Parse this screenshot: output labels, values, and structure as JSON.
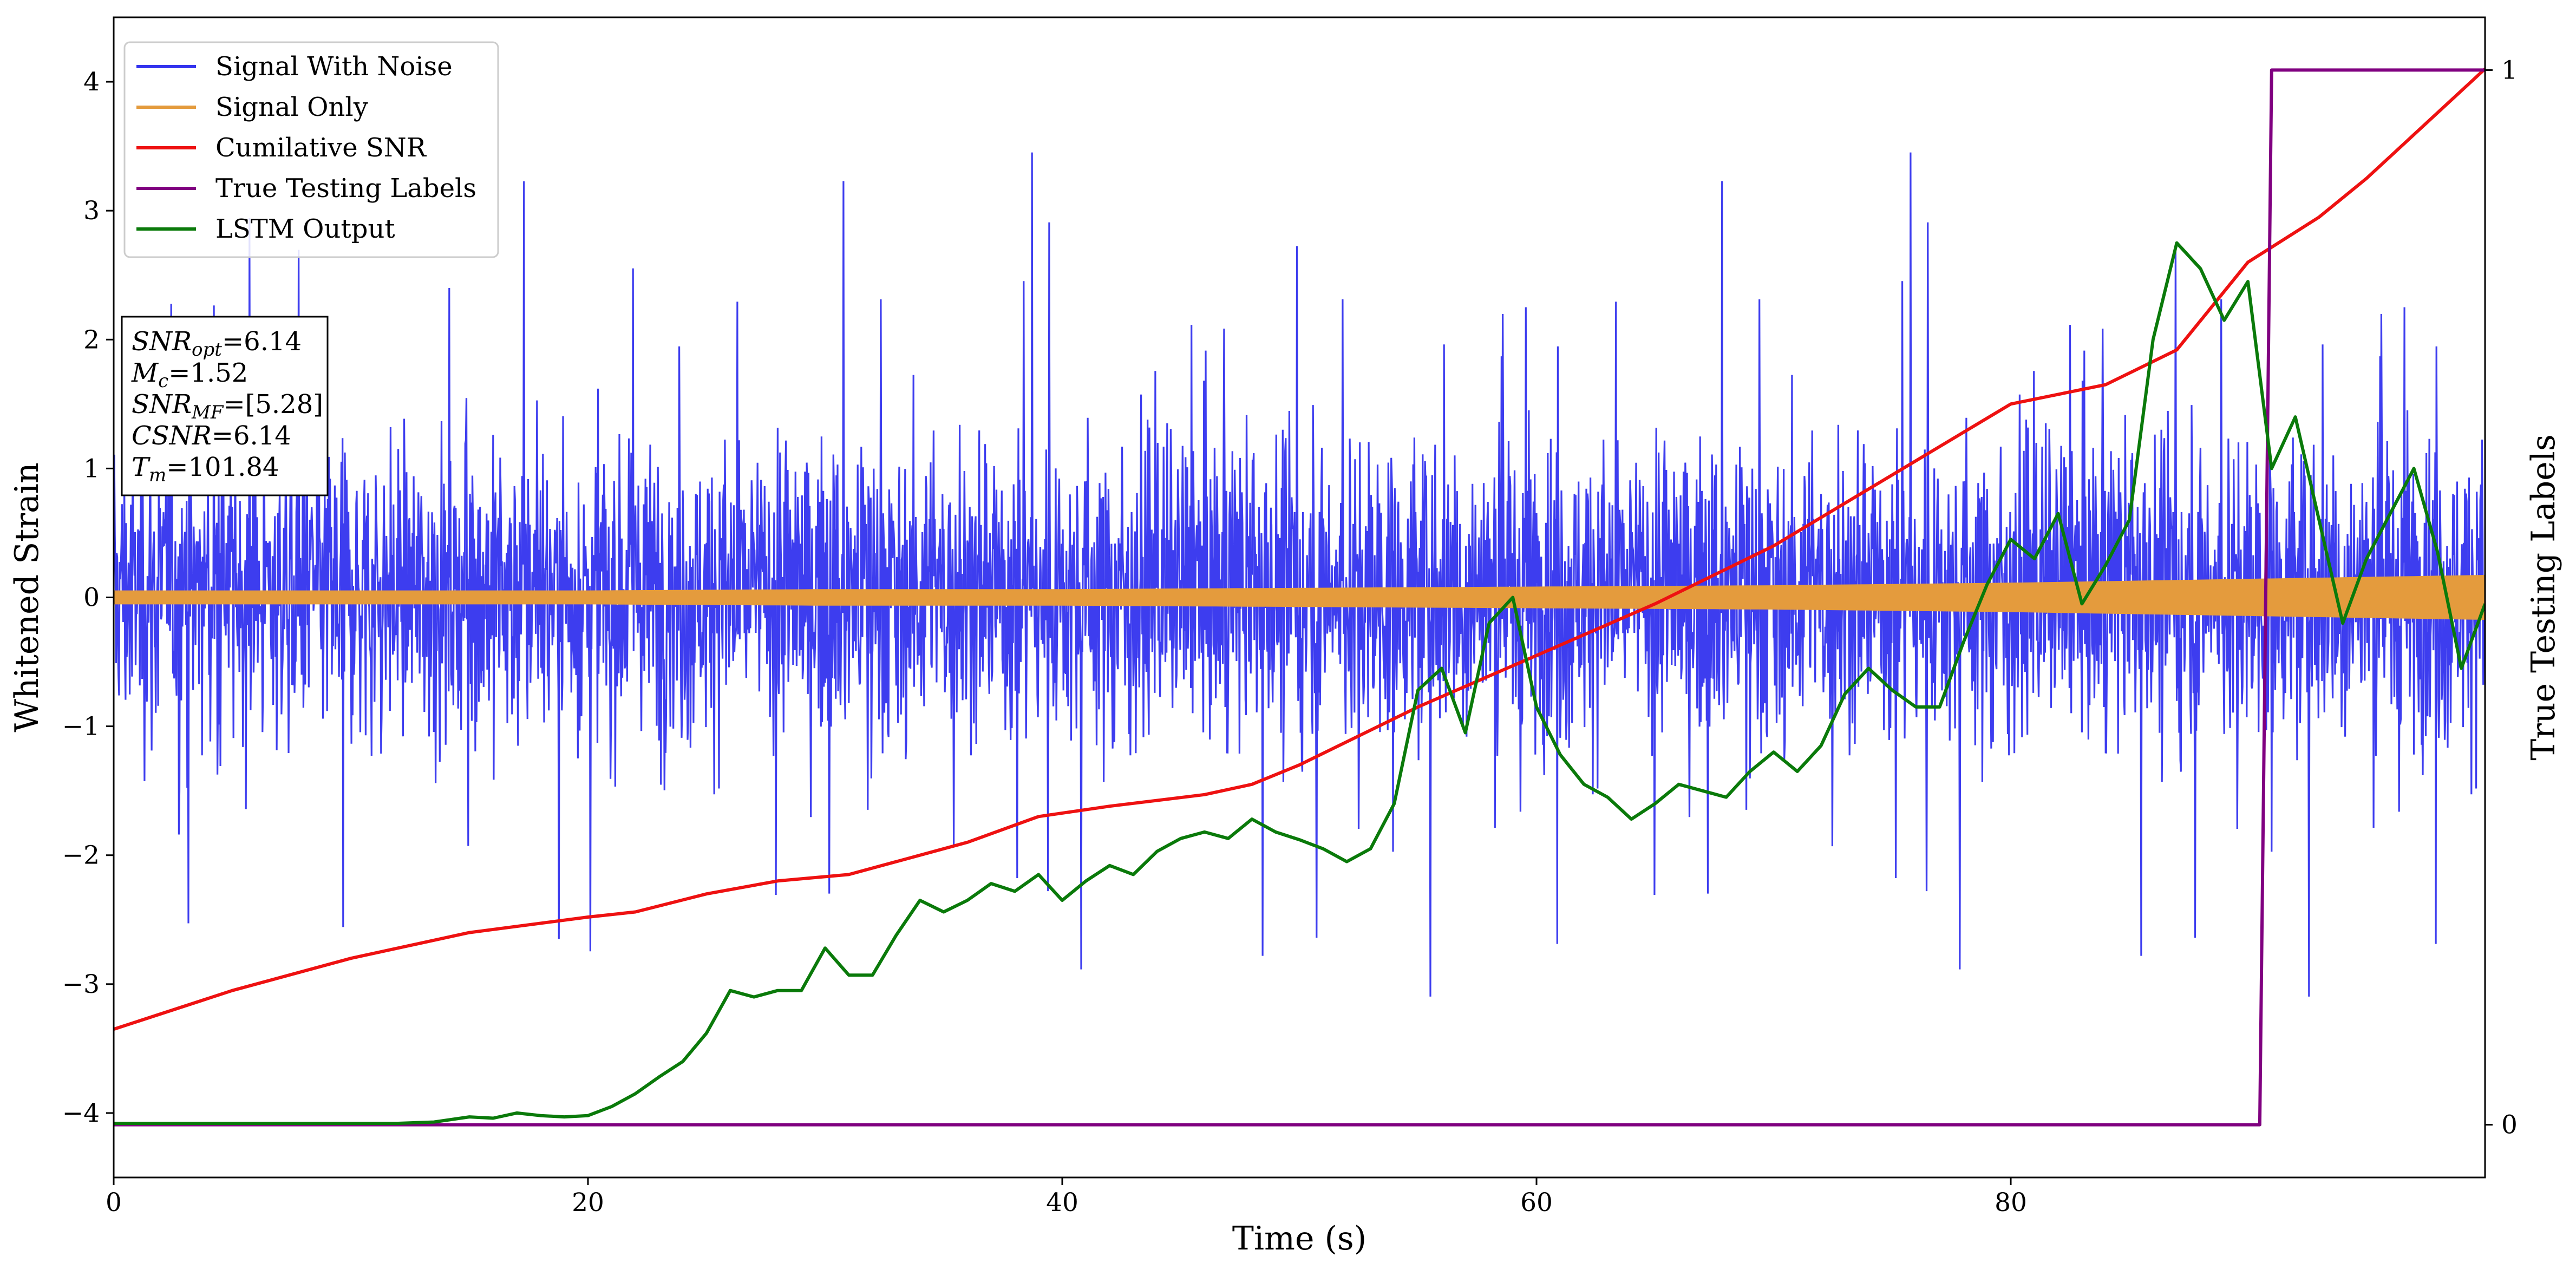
{
  "chart_data": {
    "type": "line",
    "xlabel": "Time (s)",
    "ylabel": "Whitened Strain",
    "y2label": "True Testing Labels",
    "xlim": [
      0,
      100
    ],
    "ylim": [
      -4.5,
      4.5
    ],
    "y2lim": [
      -0.05,
      1.05
    ],
    "xticks": [
      0,
      20,
      40,
      60,
      80
    ],
    "yticks": [
      -4,
      -3,
      -2,
      -1,
      0,
      1,
      2,
      3,
      4
    ],
    "y2ticks": [
      0,
      1
    ],
    "grid": false,
    "legend_position": "top-left",
    "series": [
      {
        "name": "Signal With Noise",
        "axis": "left",
        "color": "#3333ee",
        "style": "dense noise",
        "envelope_typical": [
          -2.0,
          2.3
        ],
        "envelope_extreme": [
          -3.75,
          4.1
        ]
      },
      {
        "name": "Signal Only",
        "axis": "left",
        "color": "#e49b3d",
        "style": "chirp band",
        "x": [
          0,
          10,
          20,
          30,
          40,
          50,
          60,
          70,
          80,
          90,
          100
        ],
        "amplitude": [
          0.05,
          0.05,
          0.05,
          0.06,
          0.06,
          0.07,
          0.08,
          0.09,
          0.11,
          0.14,
          0.17
        ]
      },
      {
        "name": "Cumilative SNR",
        "axis": "left",
        "color": "#ee1111",
        "x": [
          0,
          5,
          10,
          15,
          20,
          22,
          25,
          28,
          31,
          33,
          36,
          39,
          42,
          46,
          48,
          50,
          55,
          60,
          65,
          70,
          75,
          80,
          84,
          87,
          90,
          93,
          95,
          100
        ],
        "y": [
          -3.35,
          -3.05,
          -2.8,
          -2.6,
          -2.48,
          -2.44,
          -2.3,
          -2.2,
          -2.15,
          -2.05,
          -1.9,
          -1.7,
          -1.62,
          -1.53,
          -1.45,
          -1.3,
          -0.85,
          -0.45,
          -0.05,
          0.4,
          0.95,
          1.5,
          1.65,
          1.92,
          2.6,
          2.95,
          3.25,
          4.1
        ]
      },
      {
        "name": "True Testing Labels",
        "axis": "right",
        "color": "#800080",
        "x": [
          0,
          90.5,
          91.0,
          100
        ],
        "y": [
          0,
          0,
          1,
          1
        ]
      },
      {
        "name": "LSTM Output",
        "axis": "left",
        "color": "#0a7a0a",
        "x": [
          0,
          12,
          13.5,
          15,
          16,
          17,
          18,
          19,
          20,
          21,
          22,
          23,
          24,
          25,
          26,
          27,
          28,
          29,
          30,
          31,
          32,
          33,
          34,
          35,
          36,
          37,
          38,
          39,
          40,
          41,
          42,
          43,
          44,
          45,
          46,
          47,
          48,
          49,
          50,
          51,
          52,
          53,
          54,
          55,
          56,
          57,
          58,
          59,
          60,
          61,
          62,
          63,
          64,
          65,
          66,
          67,
          68,
          69,
          70,
          71,
          72,
          73,
          74,
          75,
          76,
          77,
          78,
          79,
          80,
          81,
          82,
          83,
          84,
          85,
          86,
          87,
          88,
          89,
          90,
          91,
          92,
          93,
          94,
          95,
          96,
          97,
          98,
          99,
          100
        ],
        "y": [
          -4.08,
          -4.08,
          -4.07,
          -4.03,
          -4.04,
          -4.0,
          -4.02,
          -4.03,
          -4.02,
          -3.95,
          -3.85,
          -3.72,
          -3.6,
          -3.38,
          -3.05,
          -3.1,
          -3.05,
          -3.05,
          -2.72,
          -2.93,
          -2.93,
          -2.62,
          -2.35,
          -2.44,
          -2.35,
          -2.22,
          -2.28,
          -2.15,
          -2.35,
          -2.2,
          -2.08,
          -2.15,
          -1.97,
          -1.87,
          -1.82,
          -1.87,
          -1.72,
          -1.82,
          -1.88,
          -1.95,
          -2.05,
          -1.95,
          -1.6,
          -0.72,
          -0.55,
          -1.05,
          -0.2,
          0.0,
          -0.85,
          -1.22,
          -1.45,
          -1.55,
          -1.72,
          -1.6,
          -1.45,
          -1.5,
          -1.55,
          -1.35,
          -1.2,
          -1.35,
          -1.15,
          -0.75,
          -0.55,
          -0.72,
          -0.85,
          -0.85,
          -0.35,
          0.1,
          0.45,
          0.3,
          0.65,
          -0.05,
          0.25,
          0.6,
          2.0,
          2.75,
          2.55,
          2.15,
          2.45,
          1.0,
          1.4,
          0.6,
          -0.2,
          0.3,
          0.65,
          1.0,
          0.35,
          -0.55,
          -0.05
        ]
      }
    ],
    "annotation_lines": [
      {
        "key": "SNR",
        "sub": "opt",
        "value": "=6.14"
      },
      {
        "key": "M",
        "sub": "c",
        "value": "=1.52"
      },
      {
        "key": "SNR",
        "sub": "MF",
        "value": "=[5.28]"
      },
      {
        "key": "CSNR",
        "sub": "",
        "value": "=6.14"
      },
      {
        "key": "T",
        "sub": "m",
        "value": "=101.84"
      }
    ]
  }
}
